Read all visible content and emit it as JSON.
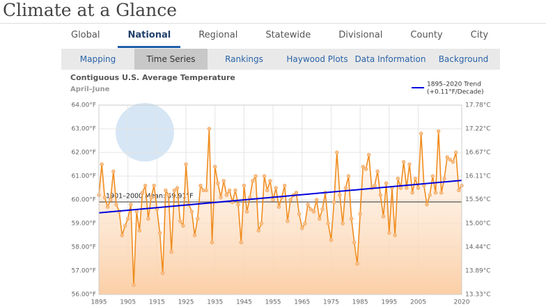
{
  "header": {
    "title": "Climate at a Glance"
  },
  "tabs": [
    "Global",
    "National",
    "Regional",
    "Statewide",
    "Divisional",
    "County",
    "City"
  ],
  "active_tab": 1,
  "subtabs": [
    "Mapping",
    "Time Series",
    "Rankings",
    "Haywood Plots",
    "Data Information",
    "Background"
  ],
  "active_subtab": 1,
  "chart_data": {
    "type": "line",
    "title": "Contiguous U.S. Average Temperature",
    "subtitle": "April–June",
    "x": [
      1895,
      1896,
      1897,
      1898,
      1899,
      1900,
      1901,
      1902,
      1903,
      1904,
      1905,
      1906,
      1907,
      1908,
      1909,
      1910,
      1911,
      1912,
      1913,
      1914,
      1915,
      1916,
      1917,
      1918,
      1919,
      1920,
      1921,
      1922,
      1923,
      1924,
      1925,
      1926,
      1927,
      1928,
      1929,
      1930,
      1931,
      1932,
      1933,
      1934,
      1935,
      1936,
      1937,
      1938,
      1939,
      1940,
      1941,
      1942,
      1943,
      1944,
      1945,
      1946,
      1947,
      1948,
      1949,
      1950,
      1951,
      1952,
      1953,
      1954,
      1955,
      1956,
      1957,
      1958,
      1959,
      1960,
      1961,
      1962,
      1963,
      1964,
      1965,
      1966,
      1967,
      1968,
      1969,
      1970,
      1971,
      1972,
      1973,
      1974,
      1975,
      1976,
      1977,
      1978,
      1979,
      1980,
      1981,
      1982,
      1983,
      1984,
      1985,
      1986,
      1987,
      1988,
      1989,
      1990,
      1991,
      1992,
      1993,
      1994,
      1995,
      1996,
      1997,
      1998,
      1999,
      2000,
      2001,
      2002,
      2003,
      2004,
      2005,
      2006,
      2007,
      2008,
      2009,
      2010,
      2011,
      2012,
      2013,
      2014,
      2015,
      2016,
      2017,
      2018,
      2019,
      2020
    ],
    "series": [
      {
        "name": "Temperature",
        "color": "#f08c1e",
        "values": [
          60.2,
          61.5,
          60.1,
          59.7,
          60.0,
          61.2,
          59.8,
          59.5,
          58.5,
          58.9,
          59.2,
          59.8,
          56.4,
          59.5,
          58.7,
          60.3,
          60.6,
          59.2,
          60.1,
          60.6,
          59.6,
          58.6,
          56.9,
          60.4,
          60.2,
          57.8,
          60.4,
          60.5,
          59.1,
          58.9,
          61.5,
          59.8,
          59.5,
          58.5,
          59.2,
          60.6,
          60.4,
          60.4,
          63.0,
          58.2,
          61.4,
          60.7,
          60.1,
          60.8,
          60.2,
          60.4,
          59.9,
          60.4,
          59.8,
          58.2,
          60.6,
          59.5,
          60.1,
          60.8,
          61.0,
          58.7,
          59.0,
          61.0,
          60.4,
          60.8,
          60.0,
          60.5,
          59.7,
          60.1,
          60.6,
          59.1,
          60.0,
          60.2,
          60.3,
          59.4,
          58.8,
          59.0,
          59.8,
          59.6,
          59.5,
          60.0,
          59.2,
          59.6,
          60.3,
          59.0,
          58.3,
          59.9,
          62.0,
          60.2,
          59.0,
          60.5,
          61.0,
          59.2,
          58.2,
          57.3,
          59.4,
          61.4,
          61.3,
          61.9,
          60.5,
          60.6,
          61.2,
          60.2,
          59.3,
          60.7,
          58.6,
          60.5,
          58.5,
          60.9,
          60.5,
          61.6,
          60.5,
          61.5,
          60.3,
          60.9,
          60.5,
          62.8,
          60.6,
          59.8,
          60.2,
          61.0,
          60.3,
          62.9,
          60.3,
          60.9,
          61.8,
          61.7,
          61.6,
          62.0,
          60.4,
          60.6
        ]
      }
    ],
    "trend": {
      "name": "1895–2020 Trend",
      "note": "(+0.11°F/Decade)",
      "color": "#0000dd",
      "x": [
        1895,
        2020
      ],
      "values": [
        59.45,
        60.82
      ]
    },
    "mean": {
      "value": 59.91,
      "label": "1901–2000 Mean: 59.91°F"
    },
    "xlim": [
      1895,
      2020
    ],
    "xticks": [
      1895,
      1905,
      1915,
      1925,
      1935,
      1945,
      1955,
      1965,
      1975,
      1985,
      1995,
      2005,
      2020
    ],
    "ylim": [
      56,
      64
    ],
    "yticks": [
      {
        "value": 56,
        "label": "56.00°F"
      },
      {
        "value": 57,
        "label": "57.00°F"
      },
      {
        "value": 58,
        "label": "58.00°F"
      },
      {
        "value": 59,
        "label": "59.00°F"
      },
      {
        "value": 60,
        "label": "60.00°F"
      },
      {
        "value": 61,
        "label": "61.00°F"
      },
      {
        "value": 62,
        "label": "62.00°F"
      },
      {
        "value": 63,
        "label": "63.00°F"
      },
      {
        "value": 64,
        "label": "64.00°F"
      }
    ],
    "y2lim": [
      13.33,
      17.78
    ],
    "y2ticks": [
      {
        "value": 13.33,
        "label": "13.33°C"
      },
      {
        "value": 13.89,
        "label": "13.89°C"
      },
      {
        "value": 14.44,
        "label": "14.44°C"
      },
      {
        "value": 15.0,
        "label": "15.00°C"
      },
      {
        "value": 15.56,
        "label": "15.56°C"
      },
      {
        "value": 16.11,
        "label": "16.11°C"
      },
      {
        "value": 16.67,
        "label": "16.67°C"
      },
      {
        "value": 17.22,
        "label": "17.22°C"
      },
      {
        "value": 17.78,
        "label": "17.78°C"
      }
    ],
    "grid": true
  }
}
